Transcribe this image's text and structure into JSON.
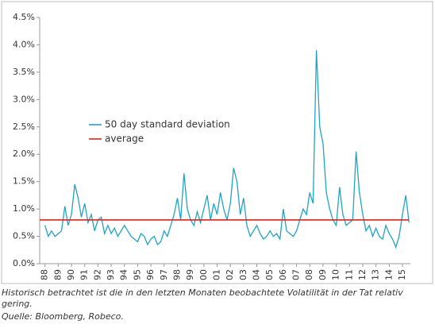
{
  "chart_data": {
    "type": "line",
    "xlim": [
      1987.6,
      2015.6
    ],
    "xticks": [
      {
        "value": 1988,
        "label": "88"
      },
      {
        "value": 1989,
        "label": "89"
      },
      {
        "value": 1990,
        "label": "90"
      },
      {
        "value": 1991,
        "label": "91"
      },
      {
        "value": 1992,
        "label": "92"
      },
      {
        "value": 1993,
        "label": "93"
      },
      {
        "value": 1994,
        "label": "94"
      },
      {
        "value": 1995,
        "label": "95"
      },
      {
        "value": 1996,
        "label": "96"
      },
      {
        "value": 1997,
        "label": "97"
      },
      {
        "value": 1998,
        "label": "98"
      },
      {
        "value": 1999,
        "label": "99"
      },
      {
        "value": 2000,
        "label": "00"
      },
      {
        "value": 2001,
        "label": "01"
      },
      {
        "value": 2002,
        "label": "02"
      },
      {
        "value": 2003,
        "label": "03"
      },
      {
        "value": 2004,
        "label": "04"
      },
      {
        "value": 2005,
        "label": "05"
      },
      {
        "value": 2006,
        "label": "06"
      },
      {
        "value": 2007,
        "label": "07"
      },
      {
        "value": 2008,
        "label": "08"
      },
      {
        "value": 2009,
        "label": "09"
      },
      {
        "value": 2010,
        "label": "10"
      },
      {
        "value": 2011,
        "label": "11"
      },
      {
        "value": 2012,
        "label": "12"
      },
      {
        "value": 2013,
        "label": "13"
      },
      {
        "value": 2014,
        "label": "14"
      },
      {
        "value": 2015,
        "label": "15"
      }
    ],
    "ylim": [
      0,
      4.5
    ],
    "yticks": [
      {
        "value": 0,
        "label": "0.0%"
      },
      {
        "value": 0.5,
        "label": "0.5%"
      },
      {
        "value": 1,
        "label": "1.0%"
      },
      {
        "value": 1.5,
        "label": "1.5%"
      },
      {
        "value": 2,
        "label": "2.0%"
      },
      {
        "value": 2.5,
        "label": "2.5%"
      },
      {
        "value": 3,
        "label": "3.0%"
      },
      {
        "value": 3.5,
        "label": "3.5%"
      },
      {
        "value": 4,
        "label": "4.0%"
      },
      {
        "value": 4.5,
        "label": "4.5%"
      }
    ],
    "grid": false,
    "legend": "upper-left",
    "series": [
      {
        "name": "50 day standard deviation",
        "color": "#1ea5c2",
        "x": [
          1988,
          1988.25,
          1988.5,
          1988.75,
          1989,
          1989.25,
          1989.5,
          1989.75,
          1990,
          1990.25,
          1990.5,
          1990.75,
          1991,
          1991.25,
          1991.5,
          1991.75,
          1992,
          1992.25,
          1992.5,
          1992.75,
          1993,
          1993.25,
          1993.5,
          1993.75,
          1994,
          1994.25,
          1994.5,
          1994.75,
          1995,
          1995.25,
          1995.5,
          1995.75,
          1996,
          1996.25,
          1996.5,
          1996.75,
          1997,
          1997.25,
          1997.5,
          1997.75,
          1998,
          1998.25,
          1998.5,
          1998.75,
          1999,
          1999.25,
          1999.5,
          1999.75,
          2000,
          2000.25,
          2000.5,
          2000.75,
          2001,
          2001.25,
          2001.5,
          2001.75,
          2002,
          2002.25,
          2002.5,
          2002.75,
          2003,
          2003.25,
          2003.5,
          2003.75,
          2004,
          2004.25,
          2004.5,
          2004.75,
          2005,
          2005.25,
          2005.5,
          2005.75,
          2006,
          2006.25,
          2006.5,
          2006.75,
          2007,
          2007.25,
          2007.5,
          2007.75,
          2008,
          2008.25,
          2008.5,
          2008.75,
          2009,
          2009.25,
          2009.5,
          2009.75,
          2010,
          2010.25,
          2010.5,
          2010.75,
          2011,
          2011.25,
          2011.5,
          2011.75,
          2012,
          2012.25,
          2012.5,
          2012.75,
          2013,
          2013.25,
          2013.5,
          2013.75,
          2014,
          2014.25,
          2014.5,
          2014.75,
          2015,
          2015.25,
          2015.5
        ],
        "values": [
          0.7,
          0.5,
          0.6,
          0.5,
          0.55,
          0.6,
          1.05,
          0.7,
          0.9,
          1.45,
          1.2,
          0.85,
          1.1,
          0.75,
          0.9,
          0.6,
          0.8,
          0.85,
          0.55,
          0.7,
          0.55,
          0.65,
          0.5,
          0.6,
          0.7,
          0.6,
          0.5,
          0.45,
          0.4,
          0.55,
          0.5,
          0.35,
          0.45,
          0.5,
          0.35,
          0.4,
          0.6,
          0.5,
          0.7,
          0.9,
          1.2,
          0.8,
          1.65,
          1.0,
          0.8,
          0.7,
          0.95,
          0.75,
          1.0,
          1.25,
          0.8,
          1.1,
          0.9,
          1.3,
          1.0,
          0.8,
          1.1,
          1.75,
          1.5,
          0.9,
          1.2,
          0.7,
          0.5,
          0.6,
          0.7,
          0.55,
          0.45,
          0.5,
          0.6,
          0.5,
          0.55,
          0.45,
          1.0,
          0.6,
          0.55,
          0.5,
          0.6,
          0.8,
          1.0,
          0.9,
          1.3,
          1.1,
          3.9,
          2.5,
          2.2,
          1.3,
          1.0,
          0.8,
          0.7,
          1.4,
          0.9,
          0.7,
          0.75,
          0.8,
          2.05,
          1.3,
          0.9,
          0.6,
          0.7,
          0.5,
          0.65,
          0.5,
          0.45,
          0.7,
          0.55,
          0.45,
          0.3,
          0.5,
          0.9,
          1.25,
          0.75
        ]
      },
      {
        "name": "average",
        "color": "#e2231a",
        "x": [
          1987.6,
          2015.5
        ],
        "values": [
          0.8,
          0.8
        ]
      }
    ],
    "caption": "Historisch betrachtet ist die in den letzten Monaten beobachtete Volatilität in der Tat relativ gering.",
    "source": "Quelle: Bloomberg, Robeco."
  }
}
